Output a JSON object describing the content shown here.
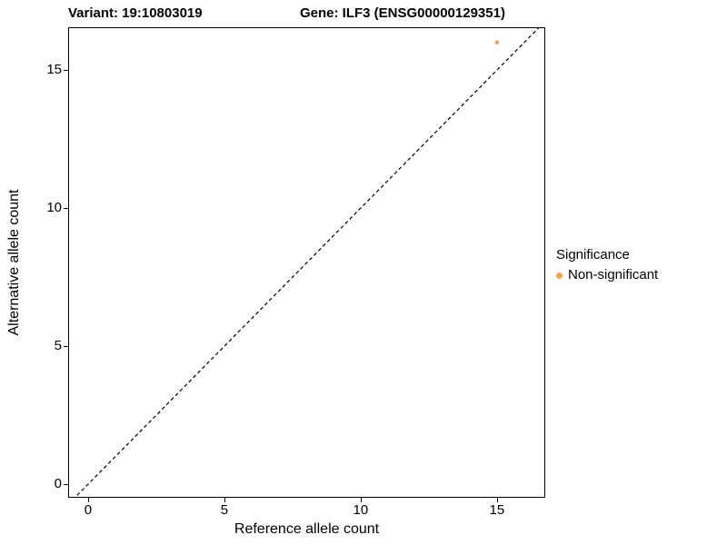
{
  "chart_data": {
    "type": "scatter",
    "title_left": "Variant: 19:10803019",
    "title_right": "Gene: ILF3 (ENSG00000129351)",
    "xlabel": "Reference allele count",
    "ylabel": "Alternative allele count",
    "xlim": [
      -0.73,
      16.77
    ],
    "ylim": [
      -0.49,
      16.55
    ],
    "xticks": [
      0,
      5,
      10,
      15
    ],
    "yticks": [
      0,
      5,
      10,
      15
    ],
    "grid": false,
    "panel_border_color": "#000000",
    "identity_line": {
      "slope": 1,
      "intercept": 0,
      "style": "dashed",
      "color": "#000000"
    },
    "point_color": "#F9A04C",
    "point_radius": 2.3,
    "points": [
      {
        "x": 15,
        "y": 16,
        "series": "Non-significant"
      }
    ],
    "legend": {
      "title": "Significance",
      "entries": [
        {
          "label": "Non-significant",
          "color": "#F9A04C"
        }
      ]
    }
  }
}
